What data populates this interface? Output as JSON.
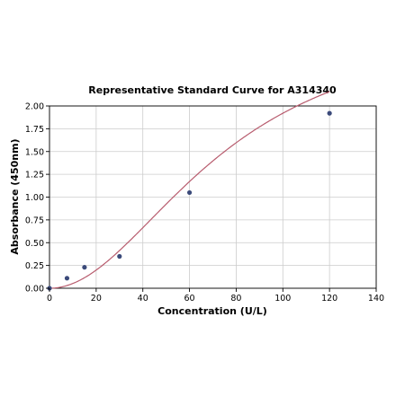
{
  "chart_data": {
    "type": "scatter",
    "title": "Representative Standard Curve for A314340",
    "xlabel": "Concentration (U/L)",
    "ylabel": "Absorbance (450nm)",
    "xlim": [
      0,
      140
    ],
    "ylim": [
      0,
      2.0
    ],
    "x_ticks": [
      0,
      20,
      40,
      60,
      80,
      100,
      120,
      140
    ],
    "y_ticks": [
      0.0,
      0.25,
      0.5,
      0.75,
      1.0,
      1.25,
      1.5,
      1.75,
      2.0
    ],
    "x_tick_labels": [
      "0",
      "20",
      "40",
      "60",
      "80",
      "100",
      "120",
      "140"
    ],
    "y_tick_labels": [
      "0.00",
      "0.25",
      "0.50",
      "0.75",
      "1.00",
      "1.25",
      "1.50",
      "1.75",
      "2.00"
    ],
    "grid": true,
    "legend": "none",
    "series": [
      {
        "kind": "points",
        "x": [
          0,
          7.5,
          15,
          30,
          60,
          120
        ],
        "y": [
          0.0,
          0.11,
          0.23,
          0.35,
          1.05,
          1.92
        ]
      },
      {
        "kind": "fitted-curve",
        "model": "4PL",
        "params": {
          "A": 0.0,
          "D": 3.0,
          "C": 75,
          "B": 2.0
        },
        "x_range": [
          0,
          120
        ]
      }
    ],
    "colors": {
      "points": "#3b4a7a",
      "curve": "#b85c6e",
      "grid": "#cccccc",
      "axis": "#000000"
    }
  }
}
